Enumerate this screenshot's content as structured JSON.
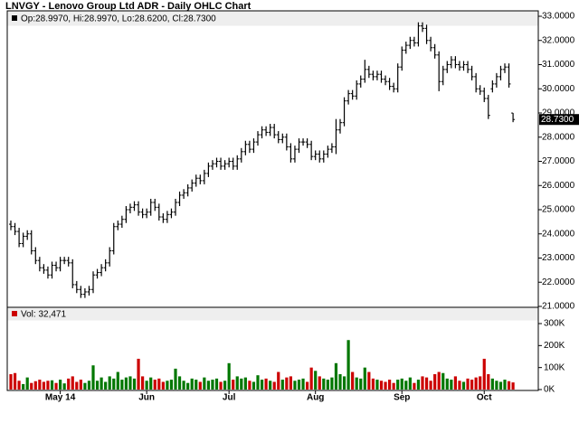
{
  "chart_data": {
    "type": "ohlc",
    "title": "LNVGY - Lenovo Group Ltd ADR - Daily OHLC Chart",
    "legend_text": "Op:28.9970, Hi:28.9970, Lo:28.6200, Cl:28.7300",
    "last_value_label": "28.7300",
    "volume_legend_text": "Vol: 32,471",
    "bar_color": "#000000",
    "up_color": "#007700",
    "down_color": "#cc0000",
    "grid": false,
    "categories": [
      null,
      null,
      null,
      null,
      null,
      null,
      null,
      null,
      null,
      null,
      null,
      null,
      "May 14",
      null,
      null,
      null,
      null,
      null,
      null,
      null,
      null,
      null,
      null,
      null,
      null,
      null,
      null,
      null,
      null,
      null,
      null,
      null,
      null,
      "Jun",
      null,
      null,
      null,
      null,
      null,
      null,
      null,
      null,
      null,
      null,
      null,
      null,
      null,
      null,
      null,
      null,
      null,
      null,
      null,
      "Jul",
      null,
      null,
      null,
      null,
      null,
      null,
      null,
      null,
      null,
      null,
      null,
      null,
      null,
      null,
      null,
      null,
      null,
      null,
      null,
      null,
      "Aug",
      null,
      null,
      null,
      null,
      null,
      null,
      null,
      null,
      null,
      null,
      null,
      null,
      null,
      null,
      null,
      null,
      null,
      null,
      null,
      null,
      "Sep",
      null,
      null,
      null,
      null,
      null,
      null,
      null,
      null,
      null,
      null,
      null,
      null,
      null,
      null,
      null,
      null,
      null,
      null,
      null,
      "Oct",
      null,
      null,
      null,
      null,
      null,
      null,
      null
    ],
    "ohlc": [
      [
        24.4,
        24.55,
        24.15,
        24.3
      ],
      [
        24.3,
        24.45,
        23.95,
        24.1
      ],
      [
        24.1,
        24.25,
        23.45,
        23.6
      ],
      [
        23.6,
        24.05,
        23.45,
        23.9
      ],
      [
        23.9,
        24.15,
        23.75,
        24.0
      ],
      [
        24.0,
        24.15,
        23.15,
        23.3
      ],
      [
        23.3,
        23.45,
        22.75,
        22.9
      ],
      [
        22.9,
        23.05,
        22.45,
        22.6
      ],
      [
        22.6,
        22.75,
        22.35,
        22.5
      ],
      [
        22.5,
        22.65,
        22.15,
        22.3
      ],
      [
        22.3,
        22.85,
        22.15,
        22.7
      ],
      [
        22.7,
        22.85,
        22.45,
        22.6
      ],
      [
        22.6,
        23.05,
        22.45,
        22.9
      ],
      [
        22.9,
        23.05,
        22.75,
        22.9
      ],
      [
        22.9,
        23.05,
        22.65,
        22.8
      ],
      [
        22.8,
        22.95,
        21.75,
        21.9
      ],
      [
        21.9,
        22.05,
        21.55,
        21.7
      ],
      [
        21.7,
        21.85,
        21.35,
        21.5
      ],
      [
        21.5,
        21.75,
        21.35,
        21.6
      ],
      [
        21.6,
        21.85,
        21.45,
        21.7
      ],
      [
        21.7,
        22.45,
        21.55,
        22.3
      ],
      [
        22.3,
        22.55,
        22.15,
        22.4
      ],
      [
        22.4,
        22.75,
        22.25,
        22.6
      ],
      [
        22.6,
        22.95,
        22.45,
        22.8
      ],
      [
        22.8,
        23.45,
        22.65,
        23.3
      ],
      [
        23.3,
        24.45,
        23.15,
        24.3
      ],
      [
        24.3,
        24.55,
        24.15,
        24.4
      ],
      [
        24.4,
        24.75,
        24.25,
        24.6
      ],
      [
        24.6,
        25.15,
        24.45,
        25.0
      ],
      [
        25.0,
        25.25,
        24.85,
        25.1
      ],
      [
        25.1,
        25.35,
        24.95,
        25.2
      ],
      [
        25.2,
        25.35,
        24.75,
        24.9
      ],
      [
        24.9,
        25.05,
        24.65,
        24.8
      ],
      [
        24.8,
        25.05,
        24.65,
        24.9
      ],
      [
        24.9,
        25.45,
        24.75,
        25.3
      ],
      [
        25.3,
        25.45,
        24.95,
        25.1
      ],
      [
        25.1,
        25.25,
        24.55,
        24.7
      ],
      [
        24.7,
        24.85,
        24.45,
        24.6
      ],
      [
        24.6,
        24.95,
        24.45,
        24.8
      ],
      [
        24.8,
        25.05,
        24.65,
        24.9
      ],
      [
        24.9,
        25.45,
        24.75,
        25.3
      ],
      [
        25.3,
        25.75,
        25.15,
        25.6
      ],
      [
        25.6,
        25.85,
        25.45,
        25.7
      ],
      [
        25.7,
        26.05,
        25.55,
        25.9
      ],
      [
        25.9,
        26.25,
        25.75,
        26.1
      ],
      [
        26.1,
        26.45,
        25.95,
        26.3
      ],
      [
        26.3,
        26.45,
        26.05,
        26.2
      ],
      [
        26.2,
        26.65,
        26.05,
        26.5
      ],
      [
        26.5,
        26.95,
        26.35,
        26.8
      ],
      [
        26.8,
        27.05,
        26.65,
        26.9
      ],
      [
        26.9,
        27.15,
        26.75,
        27.0
      ],
      [
        27.0,
        27.15,
        26.65,
        26.8
      ],
      [
        26.8,
        27.05,
        26.65,
        26.9
      ],
      [
        26.9,
        27.15,
        26.75,
        27.0
      ],
      [
        27.0,
        27.15,
        26.65,
        26.8
      ],
      [
        26.8,
        27.25,
        26.65,
        27.1
      ],
      [
        27.1,
        27.55,
        26.95,
        27.4
      ],
      [
        27.4,
        27.85,
        27.25,
        27.7
      ],
      [
        27.7,
        27.85,
        27.35,
        27.5
      ],
      [
        27.5,
        27.95,
        27.35,
        27.8
      ],
      [
        27.8,
        28.25,
        27.65,
        28.1
      ],
      [
        28.1,
        28.45,
        27.95,
        28.3
      ],
      [
        28.3,
        28.45,
        28.05,
        28.2
      ],
      [
        28.2,
        28.55,
        28.05,
        28.4
      ],
      [
        28.4,
        28.55,
        27.95,
        28.1
      ],
      [
        28.1,
        28.25,
        27.75,
        27.9
      ],
      [
        27.9,
        28.15,
        27.75,
        28.0
      ],
      [
        28.0,
        28.15,
        27.45,
        27.6
      ],
      [
        27.6,
        27.75,
        26.95,
        27.1
      ],
      [
        27.1,
        27.65,
        26.95,
        27.5
      ],
      [
        27.5,
        27.95,
        27.35,
        27.8
      ],
      [
        27.8,
        27.95,
        27.65,
        27.8
      ],
      [
        27.8,
        27.95,
        27.55,
        27.7
      ],
      [
        27.7,
        27.85,
        27.05,
        27.2
      ],
      [
        27.2,
        27.45,
        27.05,
        27.3
      ],
      [
        27.3,
        27.45,
        26.95,
        27.1
      ],
      [
        27.1,
        27.45,
        26.95,
        27.3
      ],
      [
        27.3,
        27.65,
        27.15,
        27.5
      ],
      [
        27.5,
        27.75,
        27.35,
        27.6
      ],
      [
        27.6,
        28.75,
        27.3,
        28.3
      ],
      [
        28.3,
        28.75,
        28.15,
        28.6
      ],
      [
        28.6,
        29.65,
        28.45,
        29.5
      ],
      [
        29.5,
        29.95,
        29.35,
        29.8
      ],
      [
        29.8,
        29.95,
        29.55,
        29.7
      ],
      [
        29.7,
        30.35,
        29.55,
        30.2
      ],
      [
        30.2,
        30.55,
        30.05,
        30.4
      ],
      [
        30.4,
        31.2,
        30.25,
        30.8
      ],
      [
        30.8,
        30.95,
        30.45,
        30.6
      ],
      [
        30.6,
        30.75,
        30.35,
        30.5
      ],
      [
        30.5,
        30.75,
        30.35,
        30.6
      ],
      [
        30.6,
        30.75,
        30.25,
        30.4
      ],
      [
        30.4,
        30.55,
        30.15,
        30.3
      ],
      [
        30.3,
        30.45,
        29.95,
        30.1
      ],
      [
        30.1,
        30.25,
        29.85,
        30.0
      ],
      [
        30.0,
        31.05,
        29.85,
        30.9
      ],
      [
        30.9,
        31.75,
        30.75,
        31.6
      ],
      [
        31.6,
        31.95,
        31.45,
        31.8
      ],
      [
        31.8,
        32.15,
        31.65,
        32.0
      ],
      [
        32.0,
        32.15,
        31.75,
        31.9
      ],
      [
        31.9,
        32.75,
        31.75,
        32.6
      ],
      [
        32.6,
        32.75,
        32.35,
        32.5
      ],
      [
        32.5,
        32.65,
        31.85,
        32.0
      ],
      [
        32.0,
        32.15,
        31.55,
        31.7
      ],
      [
        31.7,
        31.85,
        31.25,
        31.4
      ],
      [
        31.4,
        31.55,
        29.9,
        30.3
      ],
      [
        30.3,
        30.95,
        30.15,
        30.8
      ],
      [
        30.8,
        31.15,
        30.65,
        31.0
      ],
      [
        31.0,
        31.35,
        30.85,
        31.2
      ],
      [
        31.2,
        31.35,
        30.85,
        31.0
      ],
      [
        31.0,
        31.15,
        30.75,
        30.9
      ],
      [
        30.9,
        31.15,
        30.75,
        31.0
      ],
      [
        31.0,
        31.15,
        30.65,
        30.8
      ],
      [
        30.8,
        30.95,
        30.35,
        30.5
      ],
      [
        30.5,
        30.65,
        29.85,
        30.0
      ],
      [
        30.0,
        30.15,
        29.75,
        29.9
      ],
      [
        29.9,
        30.05,
        29.45,
        29.6
      ],
      [
        29.6,
        29.75,
        28.75,
        28.9
      ],
      [
        30.0,
        30.35,
        29.85,
        30.2
      ],
      [
        30.2,
        30.65,
        30.05,
        30.5
      ],
      [
        30.5,
        30.95,
        30.35,
        30.8
      ],
      [
        30.8,
        31.05,
        30.65,
        30.9
      ],
      [
        30.9,
        31.05,
        30.05,
        30.2
      ],
      [
        28.997,
        28.997,
        28.62,
        28.73
      ]
    ],
    "volume": [
      70000,
      75000,
      40000,
      25000,
      55000,
      30000,
      38000,
      45000,
      35000,
      40000,
      42000,
      30000,
      45000,
      28000,
      50000,
      60000,
      35000,
      45000,
      30000,
      40000,
      110000,
      40000,
      55000,
      35000,
      60000,
      50000,
      80000,
      45000,
      55000,
      60000,
      50000,
      140000,
      60000,
      40000,
      55000,
      45000,
      50000,
      35000,
      40000,
      45000,
      95000,
      60000,
      40000,
      30000,
      50000,
      45000,
      35000,
      55000,
      40000,
      45000,
      50000,
      35000,
      40000,
      120000,
      45000,
      60000,
      50000,
      55000,
      40000,
      35000,
      65000,
      45000,
      50000,
      40000,
      35000,
      80000,
      45000,
      55000,
      60000,
      40000,
      45000,
      50000,
      35000,
      100000,
      85000,
      60000,
      50000,
      45000,
      55000,
      120000,
      70000,
      60000,
      225000,
      80000,
      55000,
      50000,
      100000,
      80000,
      50000,
      45000,
      40000,
      35000,
      45000,
      30000,
      45000,
      50000,
      40000,
      55000,
      30000,
      45000,
      60000,
      55000,
      40000,
      70000,
      80000,
      75000,
      50000,
      45000,
      60000,
      40000,
      35000,
      50000,
      45000,
      55000,
      60000,
      140000,
      70000,
      50000,
      40000,
      35000,
      45000,
      38000,
      32471
    ],
    "ylim": [
      21,
      33
    ],
    "yticks": [
      {
        "value": 21,
        "label": "21.0000"
      },
      {
        "value": 22,
        "label": "22.0000"
      },
      {
        "value": 23,
        "label": "23.0000"
      },
      {
        "value": 24,
        "label": "24.0000"
      },
      {
        "value": 25,
        "label": "25.0000"
      },
      {
        "value": 26,
        "label": "26.0000"
      },
      {
        "value": 27,
        "label": "27.0000"
      },
      {
        "value": 28,
        "label": "28.0000"
      },
      {
        "value": 29,
        "label": "29.0000"
      },
      {
        "value": 30,
        "label": "30.0000"
      },
      {
        "value": 31,
        "label": "31.0000"
      },
      {
        "value": 32,
        "label": "32.0000"
      },
      {
        "value": 33,
        "label": "33.0000"
      }
    ],
    "y2lim": [
      0,
      300000
    ],
    "y2ticks": [
      {
        "value": 0,
        "label": "0K"
      },
      {
        "value": 100000,
        "label": "100K"
      },
      {
        "value": 200000,
        "label": "200K"
      },
      {
        "value": 300000,
        "label": "300K"
      }
    ]
  }
}
